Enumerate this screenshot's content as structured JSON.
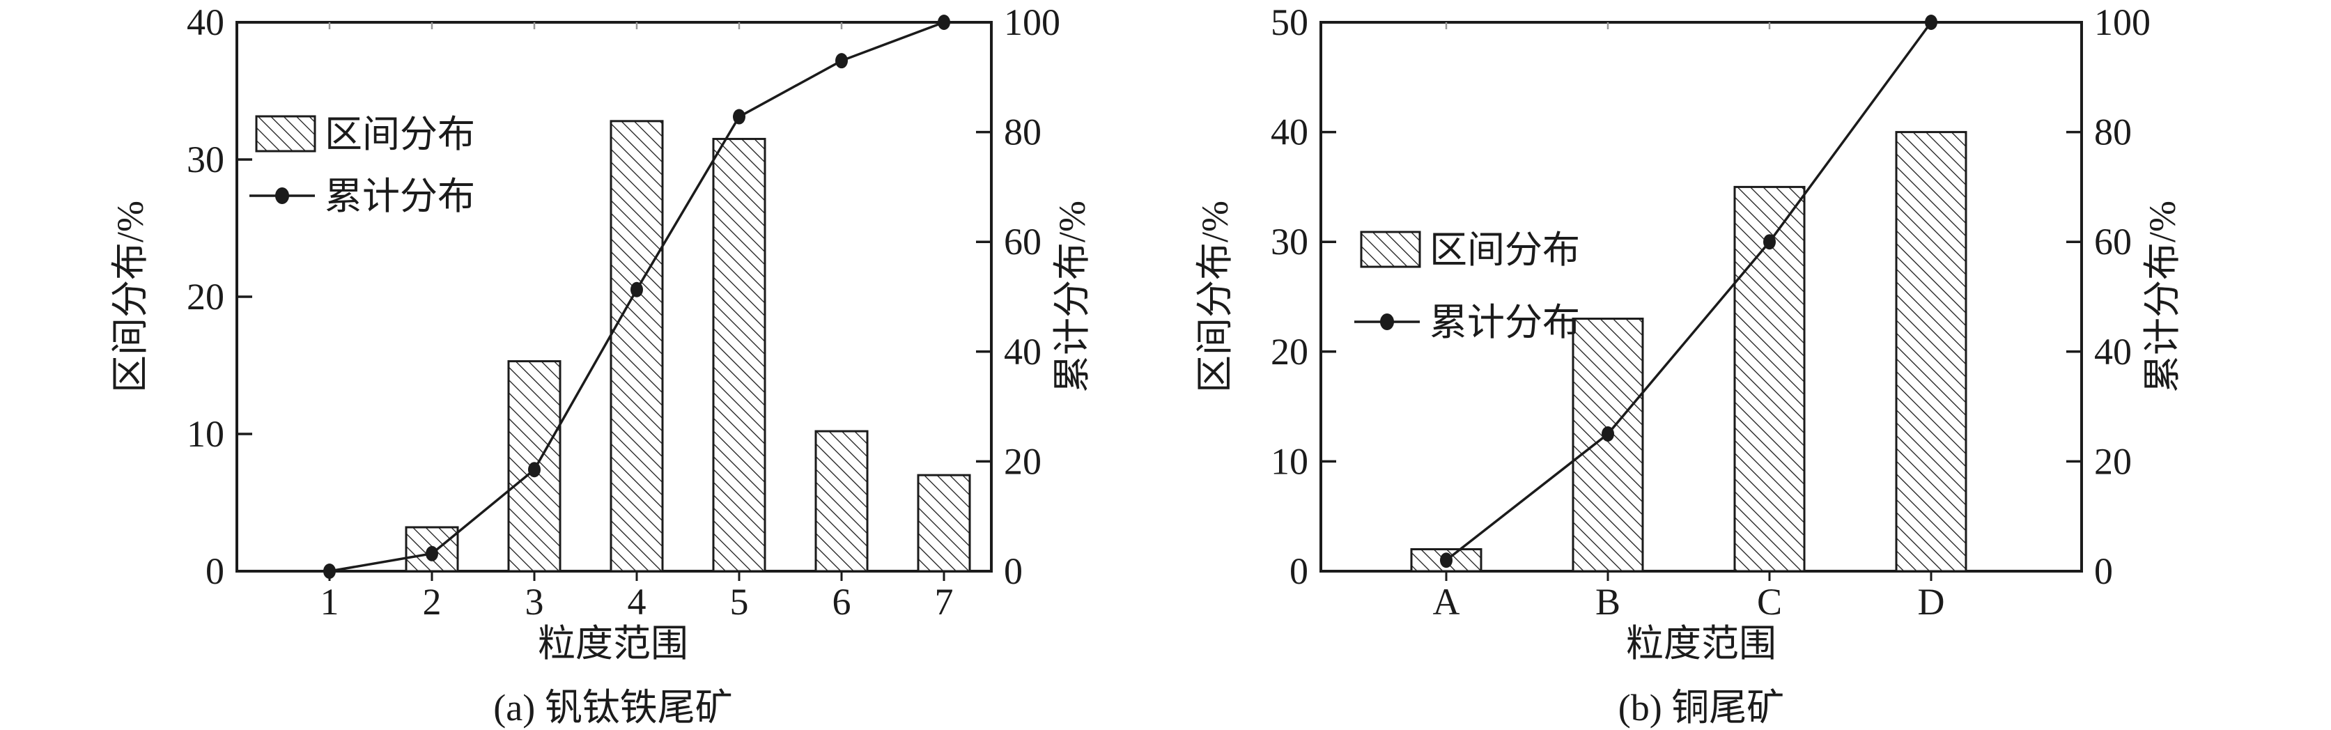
{
  "figure": {
    "background_color": "#ffffff",
    "ink_color": "#1b1b1b",
    "minor_tick_color": "#999999",
    "description": "Two particle-size distribution combo charts: hatched interval-distribution bars (left axis) with cumulative-distribution dot line (right axis)"
  },
  "chart_data": [
    {
      "type": "bar",
      "subtype": "bar-line-combo",
      "title": "(a) 钒钛铁尾矿",
      "xlabel": "粒度范围",
      "ylabel_left": "区间分布/%",
      "ylabel_right": "累计分布/%",
      "categories": [
        "1",
        "2",
        "3",
        "4",
        "5",
        "6",
        "7"
      ],
      "series": [
        {
          "name": "区间分布",
          "type": "bar",
          "axis": "left",
          "style": "diagonal-hatch",
          "values": [
            0,
            3.2,
            15.3,
            32.8,
            31.5,
            10.2,
            7.0
          ]
        },
        {
          "name": "累计分布",
          "type": "line",
          "axis": "right",
          "marker": "filled-circle",
          "values": [
            0,
            3.2,
            18.5,
            51.3,
            82.8,
            93,
            100
          ]
        }
      ],
      "ylim_left": [
        0,
        40
      ],
      "ylim_right": [
        0,
        100
      ],
      "yticks_left": [
        0,
        10,
        20,
        30,
        40
      ],
      "yticks_right": [
        0,
        20,
        40,
        60,
        80,
        100
      ],
      "grid": false,
      "legend_position": "upper-left-inside"
    },
    {
      "type": "bar",
      "subtype": "bar-line-combo",
      "title": "(b) 铜尾矿",
      "xlabel": "粒度范围",
      "ylabel_left": "区间分布/%",
      "ylabel_right": "累计分布/%",
      "categories": [
        "A",
        "B",
        "C",
        "D"
      ],
      "series": [
        {
          "name": "区间分布",
          "type": "bar",
          "axis": "left",
          "style": "diagonal-hatch",
          "values": [
            2,
            23,
            35,
            40
          ]
        },
        {
          "name": "累计分布",
          "type": "line",
          "axis": "right",
          "marker": "filled-circle",
          "values": [
            2,
            25,
            60,
            100
          ]
        }
      ],
      "ylim_left": [
        0,
        50
      ],
      "ylim_right": [
        0,
        100
      ],
      "yticks_left": [
        0,
        10,
        20,
        30,
        40,
        50
      ],
      "yticks_right": [
        0,
        20,
        40,
        60,
        80,
        100
      ],
      "grid": false,
      "legend_position": "upper-left-inside"
    }
  ]
}
